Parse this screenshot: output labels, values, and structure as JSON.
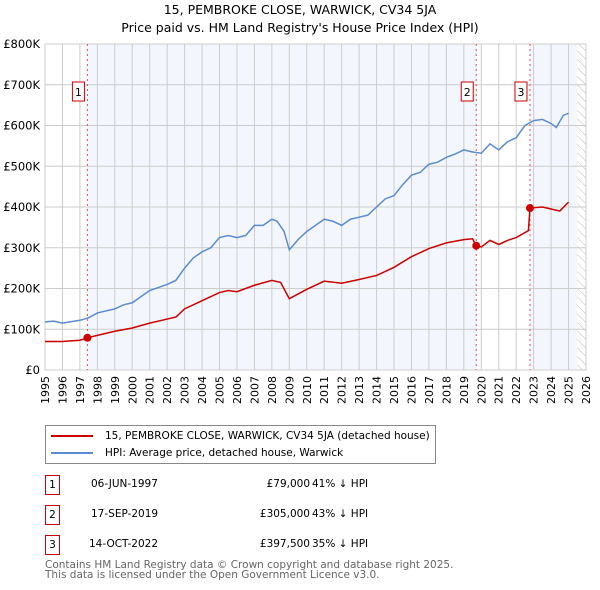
{
  "title": "15, PEMBROKE CLOSE, WARWICK, CV34 5JA",
  "subtitle": "Price paid vs. HM Land Registry's House Price Index (HPI)",
  "chart_data": {
    "type": "line",
    "title": "15, PEMBROKE CLOSE, WARWICK, CV34 5JA — Price paid vs. HM Land Registry's House Price Index (HPI)",
    "xlim": [
      1995,
      2026
    ],
    "ylim": [
      0,
      800000
    ],
    "x_ticks": [
      "1995",
      "1996",
      "1997",
      "1998",
      "1999",
      "2000",
      "2001",
      "2002",
      "2003",
      "2004",
      "2005",
      "2006",
      "2007",
      "2008",
      "2009",
      "2010",
      "2011",
      "2012",
      "2013",
      "2014",
      "2015",
      "2016",
      "2017",
      "2018",
      "2019",
      "2020",
      "2021",
      "2022",
      "2023",
      "2024",
      "2025",
      "2026"
    ],
    "y_ticks": [
      {
        "v": 0,
        "label": "£0"
      },
      {
        "v": 100000,
        "label": "£100K"
      },
      {
        "v": 200000,
        "label": "£200K"
      },
      {
        "v": 300000,
        "label": "£300K"
      },
      {
        "v": 400000,
        "label": "£400K"
      },
      {
        "v": 500000,
        "label": "£500K"
      },
      {
        "v": 600000,
        "label": "£600K"
      },
      {
        "v": 700000,
        "label": "£700K"
      },
      {
        "v": 800000,
        "label": "£800K"
      }
    ],
    "grid": true,
    "series": [
      {
        "name": "15, PEMBROKE CLOSE, WARWICK, CV34 5JA (detached house)",
        "color": "#cc0000",
        "x": [
          1995,
          1996,
          1997,
          1997.43,
          1998,
          1999,
          2000,
          2001,
          2002,
          2002.5,
          2003,
          2004,
          2005,
          2005.5,
          2006,
          2007,
          2008,
          2008.5,
          2009,
          2010,
          2011,
          2012,
          2013,
          2014,
          2015,
          2016,
          2017,
          2018,
          2019,
          2019.5,
          2019.71,
          2020,
          2020.5,
          2021,
          2021.5,
          2022,
          2022.7,
          2022.79,
          2023.5,
          2024,
          2024.5,
          2025
        ],
        "y": [
          70000,
          70000,
          73000,
          79000,
          85000,
          95000,
          103000,
          115000,
          125000,
          130000,
          150000,
          170000,
          190000,
          195000,
          192000,
          208000,
          220000,
          215000,
          175000,
          198000,
          218000,
          213000,
          222000,
          232000,
          252000,
          278000,
          298000,
          312000,
          320000,
          322000,
          305000,
          302000,
          318000,
          308000,
          318000,
          325000,
          342000,
          397500,
          400000,
          395000,
          390000,
          412000
        ]
      },
      {
        "name": "HPI: Average price, detached house, Warwick",
        "color": "#5b8bd0",
        "x": [
          1995,
          1995.5,
          1996,
          1997,
          1997.5,
          1998,
          1999,
          1999.5,
          2000,
          2000.5,
          2001,
          2002,
          2002.5,
          2003,
          2003.5,
          2004,
          2004.5,
          2005,
          2005.5,
          2006,
          2006.5,
          2007,
          2007.5,
          2008,
          2008.3,
          2008.7,
          2009,
          2009.5,
          2010,
          2010.5,
          2011,
          2011.5,
          2012,
          2012.5,
          2013,
          2013.5,
          2014,
          2014.5,
          2015,
          2015.5,
          2016,
          2016.5,
          2017,
          2017.5,
          2018,
          2018.5,
          2019,
          2019.5,
          2020,
          2020.5,
          2021,
          2021.5,
          2022,
          2022.5,
          2023,
          2023.5,
          2024,
          2024.3,
          2024.7,
          2025
        ],
        "y": [
          118000,
          120000,
          115000,
          122000,
          128000,
          140000,
          150000,
          160000,
          165000,
          180000,
          195000,
          210000,
          220000,
          250000,
          275000,
          290000,
          300000,
          325000,
          330000,
          325000,
          330000,
          355000,
          355000,
          370000,
          365000,
          340000,
          295000,
          320000,
          340000,
          355000,
          370000,
          365000,
          355000,
          370000,
          375000,
          380000,
          400000,
          420000,
          428000,
          455000,
          478000,
          485000,
          505000,
          510000,
          522000,
          530000,
          540000,
          535000,
          532000,
          555000,
          540000,
          560000,
          570000,
          600000,
          612000,
          615000,
          605000,
          595000,
          625000,
          630000
        ]
      }
    ],
    "sales": [
      {
        "label": "1",
        "x": 1997.43,
        "y": 79000
      },
      {
        "label": "2",
        "x": 2019.71,
        "y": 305000
      },
      {
        "label": "3",
        "x": 2022.79,
        "y": 397500
      }
    ],
    "data_end": 2025.5,
    "legend_placement": "below"
  },
  "legend": [
    "15, PEMBROKE CLOSE, WARWICK, CV34 5JA (detached house)",
    "HPI: Average price, detached house, Warwick"
  ],
  "table": [
    {
      "num": "1",
      "date": "06-JUN-1997",
      "price": "£79,000",
      "hpi": "41% ↓ HPI"
    },
    {
      "num": "2",
      "date": "17-SEP-2019",
      "price": "£305,000",
      "hpi": "43% ↓ HPI"
    },
    {
      "num": "3",
      "date": "14-OCT-2022",
      "price": "£397,500",
      "hpi": "35% ↓ HPI"
    }
  ],
  "footer": [
    "Contains HM Land Registry data © Crown copyright and database right 2025.",
    "This data is licensed under the Open Government Licence v3.0."
  ]
}
